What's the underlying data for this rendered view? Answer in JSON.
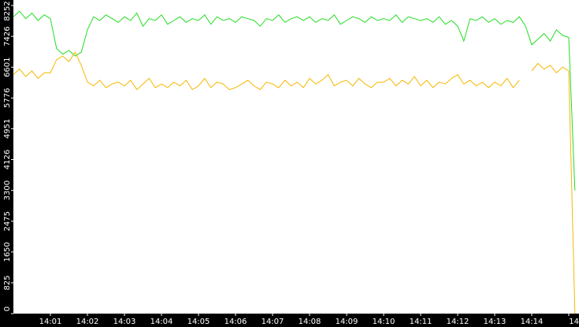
{
  "chart_data": {
    "type": "line",
    "categories": [
      null,
      null,
      null,
      null,
      null,
      null,
      "14:01",
      null,
      null,
      null,
      null,
      null,
      "14:02",
      null,
      null,
      null,
      null,
      null,
      "14:03",
      null,
      null,
      null,
      null,
      null,
      "14:04",
      null,
      null,
      null,
      null,
      null,
      "14:05",
      null,
      null,
      null,
      null,
      null,
      "14:06",
      null,
      null,
      null,
      null,
      null,
      "14:07",
      null,
      null,
      null,
      null,
      null,
      "14:08",
      null,
      null,
      null,
      null,
      null,
      "14:09",
      null,
      null,
      null,
      null,
      null,
      "14:10",
      null,
      null,
      null,
      null,
      null,
      "14:11",
      null,
      null,
      null,
      null,
      null,
      "14:12",
      null,
      null,
      null,
      null,
      null,
      "14:13",
      null,
      null,
      null,
      null,
      null,
      "14:14",
      null,
      null,
      null,
      null,
      null,
      "14",
      null
    ],
    "series": [
      {
        "color": "#22dd22",
        "values": [
          7950,
          8100,
          7900,
          8050,
          7850,
          8000,
          7900,
          7100,
          6950,
          7050,
          6900,
          7000,
          7600,
          7950,
          7850,
          8000,
          7900,
          7800,
          7950,
          7850,
          8050,
          7700,
          7900,
          7850,
          8000,
          7750,
          7850,
          7950,
          7800,
          7900,
          7850,
          8000,
          7750,
          7950,
          7850,
          7900,
          7800,
          7950,
          7900,
          7850,
          7700,
          7900,
          7850,
          8000,
          7800,
          7900,
          7950,
          7850,
          7950,
          7800,
          7900,
          7850,
          8000,
          7750,
          7850,
          7950,
          7900,
          7800,
          7950,
          7850,
          7900,
          7850,
          8000,
          7800,
          7950,
          7900,
          7850,
          7900,
          7800,
          7950,
          7750,
          7850,
          7700,
          7300,
          7900,
          7850,
          7950,
          7800,
          7900,
          7750,
          7850,
          7800,
          7950,
          7700,
          7200,
          7350,
          7500,
          7300,
          7600,
          7450,
          7400,
          3300
        ]
      },
      {
        "color": "#f5b800",
        "values": [
          6400,
          6550,
          6350,
          6500,
          6300,
          6450,
          6450,
          6800,
          6900,
          6750,
          7000,
          6650,
          6200,
          6100,
          6250,
          6050,
          6150,
          6200,
          6100,
          6250,
          6000,
          6150,
          6300,
          6050,
          6150,
          6050,
          6200,
          6100,
          6250,
          6000,
          6100,
          6300,
          6050,
          6200,
          6150,
          6000,
          6050,
          6150,
          6250,
          6100,
          6000,
          6200,
          6150,
          6050,
          6250,
          6100,
          6200,
          6050,
          6300,
          6150,
          6250,
          6400,
          6100,
          6200,
          6250,
          6100,
          6300,
          6150,
          6050,
          6200,
          6200,
          6300,
          6100,
          6250,
          6150,
          6350,
          6100,
          6250,
          6050,
          6200,
          6150,
          6300,
          6400,
          6150,
          6250,
          6100,
          6200,
          6050,
          6200,
          6100,
          6300,
          6050,
          6250,
          null,
          6500,
          6700,
          6550,
          6650,
          6450,
          6600,
          6500,
          0
        ]
      }
    ],
    "ylim": [
      0,
      8252
    ],
    "yticks": [
      0,
      825,
      1650,
      2475,
      3300,
      4126,
      4951,
      5776,
      6601,
      7426,
      8252
    ]
  }
}
